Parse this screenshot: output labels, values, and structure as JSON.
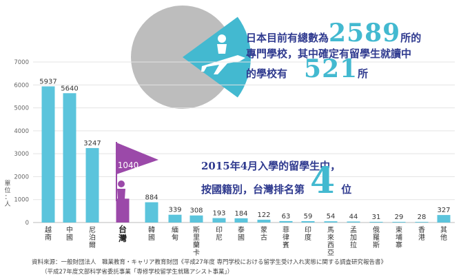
{
  "chart_data": {
    "type": "bar",
    "ylabel": "單位：人",
    "ylim": [
      0,
      7000
    ],
    "yticks": [
      "0",
      "1000",
      "2000",
      "3000",
      "4000",
      "5000",
      "6000",
      "7000"
    ],
    "categories": [
      "越南",
      "中國",
      "尼泊爾",
      "台灣",
      "韓國",
      "緬甸",
      "斯里蘭卡",
      "印尼",
      "泰國",
      "蒙古",
      "菲律賓",
      "印度",
      "馬來西亞",
      "孟加拉",
      "俄羅斯",
      "柬埔寨",
      "香港",
      "其他"
    ],
    "values": [
      5937,
      5640,
      3247,
      1040,
      884,
      339,
      308,
      193,
      184,
      122,
      63,
      59,
      54,
      44,
      31,
      29,
      28,
      327
    ],
    "value_labels": [
      "5937",
      "5640",
      "3247",
      "1040",
      "884",
      "339",
      "308",
      "193",
      "184",
      "122",
      "63",
      "59",
      "54",
      "44",
      "31",
      "29",
      "28",
      "327"
    ],
    "highlight": "台灣",
    "colors": {
      "bar": "#5bc4dc",
      "highlight": "#9b49a9",
      "pie_gray": "#bdbdbd",
      "pie_blue": "#43b9d0",
      "navy": "#2f3a8f"
    }
  },
  "pie": {
    "total": 2589,
    "part": 521,
    "icon": "airplane-person-icon"
  },
  "headline_pie": {
    "l1a": "日本目前有總數為",
    "num1": "2589",
    "l1b": "所的",
    "l2": "專門學校，其中確定有留學生就讀中",
    "l3a": "的學校有",
    "num2": "521",
    "l3b": "所"
  },
  "headline_rank": {
    "l1": "2015年4月入學的留學生中，",
    "l2a": "按國籍別，台灣排名第",
    "rank": "4",
    "l2b": "位"
  },
  "source": {
    "line1": "資料來源：一般財団法人　職業教育・キャリア教育財団《平成27年度 専門学校における留学生受け入れ実態に関する調査研究報告書》",
    "line2": "（平成27年度文部科学省委託事業「専修学校留学生就職アシスト事業」）"
  },
  "flag_icon": "flag-icon",
  "person_icon": "person-icon"
}
